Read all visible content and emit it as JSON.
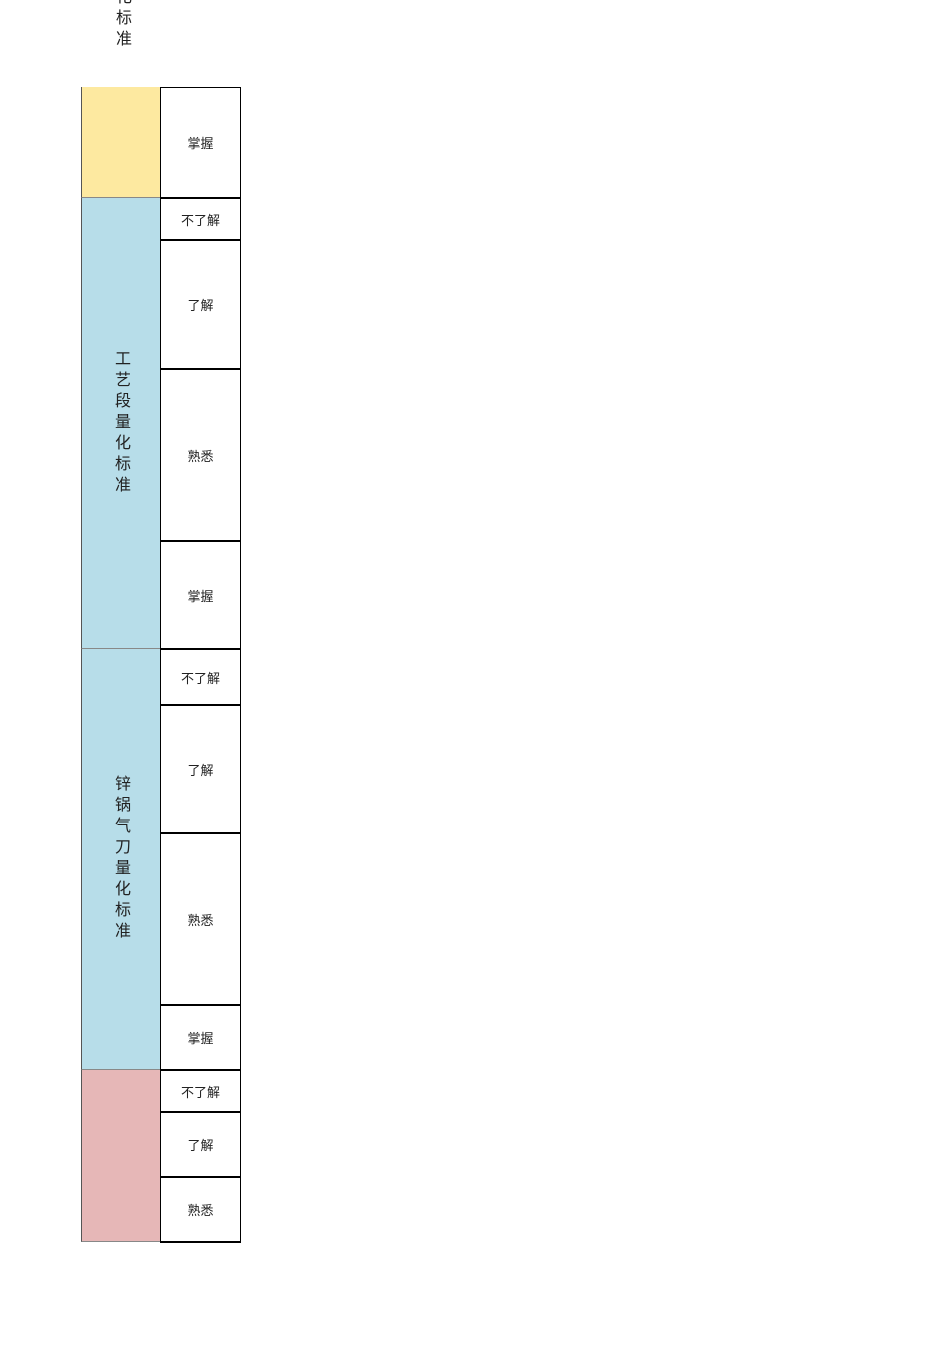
{
  "fragment": "化标准",
  "groups": [
    {
      "levels": [
        "掌握"
      ]
    },
    {
      "label": "工艺段量化标准",
      "levels": [
        "不了解",
        "了解",
        "熟悉",
        "掌握"
      ]
    },
    {
      "label": "锌锅气刀量化标准",
      "levels": [
        "不了解",
        "了解",
        "熟悉",
        "掌握"
      ]
    },
    {
      "levels": [
        "不了解",
        "了解",
        "熟悉"
      ]
    }
  ]
}
